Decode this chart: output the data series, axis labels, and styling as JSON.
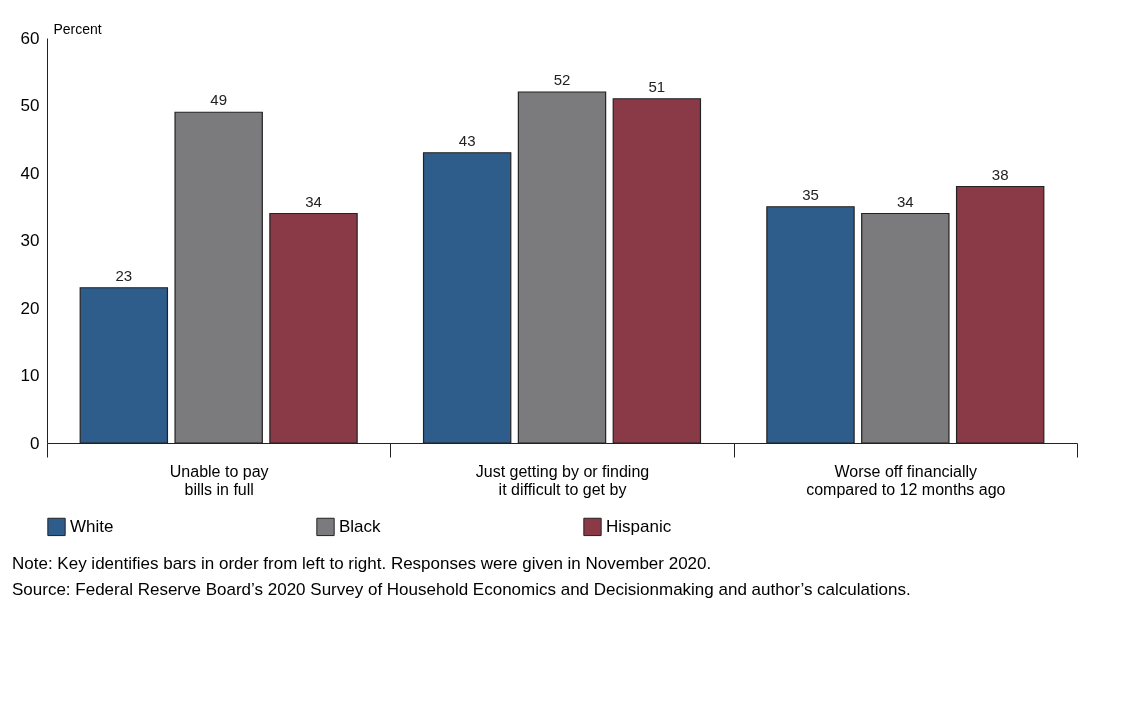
{
  "chart_data": {
    "type": "bar",
    "ylabel": "Percent",
    "categories": [
      "Unable to pay bills in full",
      "Just getting by or finding it difficult to get by",
      "Worse off financially compared to 12 months ago"
    ],
    "series": [
      {
        "name": "White",
        "color": "#2e5d8c",
        "values": [
          23,
          43,
          35
        ]
      },
      {
        "name": "Black",
        "color": "#7b7b7e",
        "values": [
          49,
          52,
          34
        ]
      },
      {
        "name": "Hispanic",
        "color": "#8a3a46",
        "values": [
          34,
          51,
          38
        ]
      }
    ],
    "ylim": [
      0,
      60
    ],
    "yticks": [
      0,
      10,
      20,
      30,
      40,
      50,
      60
    ],
    "grid": false,
    "legend": "bottom",
    "data_labels": true,
    "annotations": [
      "Note: Key identifies bars in order from left to right. Responses were given in November 2020.",
      "Source: Federal Reserve Board’s 2020 Survey of Household Economics and Decisionmaking and author’s calculations."
    ]
  }
}
